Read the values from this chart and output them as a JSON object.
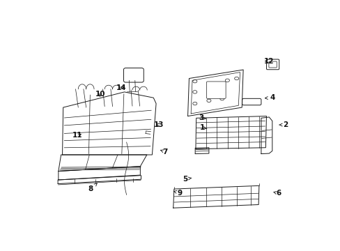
{
  "background_color": "#ffffff",
  "line_color": "#1a1a1a",
  "text_color": "#111111",
  "figsize": [
    4.89,
    3.6
  ],
  "dpi": 100,
  "label_positions": {
    "1": {
      "text": [
        0.605,
        0.495
      ],
      "arrow": [
        0.622,
        0.49
      ]
    },
    "2": {
      "text": [
        0.92,
        0.51
      ],
      "arrow": [
        0.895,
        0.51
      ]
    },
    "3": {
      "text": [
        0.6,
        0.545
      ],
      "arrow": [
        0.62,
        0.542
      ]
    },
    "4": {
      "text": [
        0.87,
        0.65
      ],
      "arrow": [
        0.84,
        0.648
      ]
    },
    "5": {
      "text": [
        0.54,
        0.23
      ],
      "arrow": [
        0.565,
        0.235
      ]
    },
    "6": {
      "text": [
        0.895,
        0.155
      ],
      "arrow": [
        0.873,
        0.163
      ]
    },
    "7": {
      "text": [
        0.465,
        0.37
      ],
      "arrow": [
        0.445,
        0.38
      ]
    },
    "8": {
      "text": [
        0.183,
        0.178
      ],
      "arrow": [
        0.208,
        0.21
      ]
    },
    "9": {
      "text": [
        0.52,
        0.158
      ],
      "arrow": [
        0.495,
        0.167
      ]
    },
    "10": {
      "text": [
        0.218,
        0.67
      ],
      "arrow": [
        0.218,
        0.655
      ]
    },
    "11": {
      "text": [
        0.133,
        0.455
      ],
      "arrow": [
        0.155,
        0.465
      ]
    },
    "12": {
      "text": [
        0.858,
        0.84
      ],
      "arrow": [
        0.833,
        0.84
      ]
    },
    "13": {
      "text": [
        0.44,
        0.51
      ],
      "arrow": [
        0.422,
        0.518
      ]
    },
    "14": {
      "text": [
        0.298,
        0.7
      ],
      "arrow": [
        0.318,
        0.71
      ]
    }
  }
}
